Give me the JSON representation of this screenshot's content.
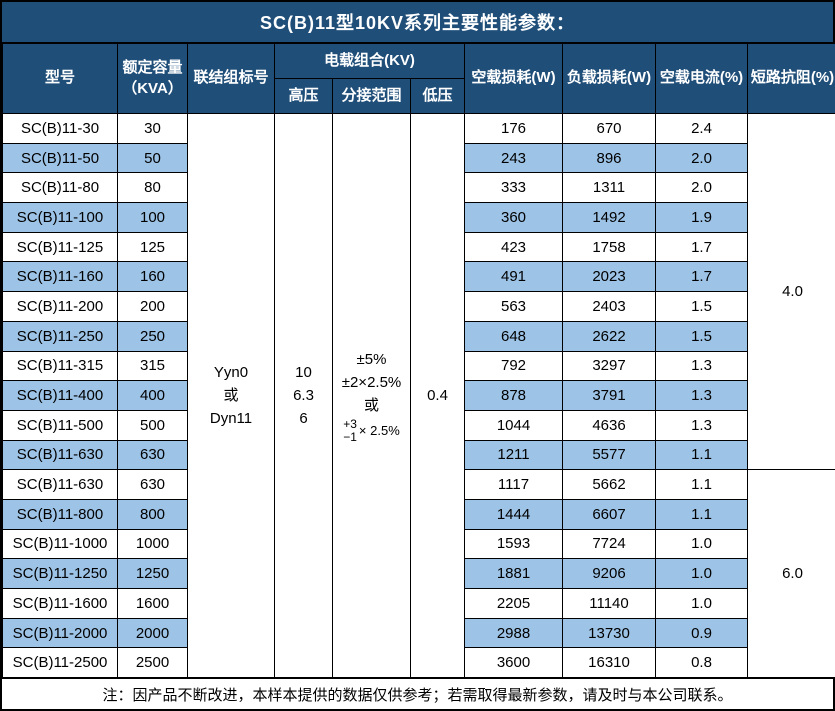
{
  "title": "SC(B)11型10KV系列主要性能参数：",
  "header": {
    "model": "型号",
    "capacity_line1": "额定容量",
    "capacity_line2": "（KVA）",
    "connection": "联结组标号",
    "voltage_combo": "电载组合(KV)",
    "high_voltage": "高压",
    "tap_range": "分接范围",
    "low_voltage": "低压",
    "no_load_loss": "空载损耗(W)",
    "load_loss": "负载损耗(W)",
    "no_load_current": "空载电流(%)",
    "impedance": "短路抗阻(%)"
  },
  "merged": {
    "connection_lines": [
      "Yyn0",
      "或",
      "Dyn11"
    ],
    "high_voltage_lines": [
      "10",
      "6.3",
      "6"
    ],
    "tap_range": {
      "line1": "±5%",
      "line2": "±2×2.5%",
      "line3": "或",
      "stack_top": "+3",
      "stack_bottom": "−1",
      "stack_suffix": "× 2.5%"
    },
    "low_voltage": "0.4"
  },
  "impedance_groups": [
    {
      "value": "4.0",
      "row_span": 12
    },
    {
      "value": "6.0",
      "row_span": 7
    }
  ],
  "rows": [
    {
      "model": "SC(B)11-30",
      "capacity": "30",
      "no_load_loss": "176",
      "load_loss": "670",
      "no_load_current": "2.4"
    },
    {
      "model": "SC(B)11-50",
      "capacity": "50",
      "no_load_loss": "243",
      "load_loss": "896",
      "no_load_current": "2.0"
    },
    {
      "model": "SC(B)11-80",
      "capacity": "80",
      "no_load_loss": "333",
      "load_loss": "1311",
      "no_load_current": "2.0"
    },
    {
      "model": "SC(B)11-100",
      "capacity": "100",
      "no_load_loss": "360",
      "load_loss": "1492",
      "no_load_current": "1.9"
    },
    {
      "model": "SC(B)11-125",
      "capacity": "125",
      "no_load_loss": "423",
      "load_loss": "1758",
      "no_load_current": "1.7"
    },
    {
      "model": "SC(B)11-160",
      "capacity": "160",
      "no_load_loss": "491",
      "load_loss": "2023",
      "no_load_current": "1.7"
    },
    {
      "model": "SC(B)11-200",
      "capacity": "200",
      "no_load_loss": "563",
      "load_loss": "2403",
      "no_load_current": "1.5"
    },
    {
      "model": "SC(B)11-250",
      "capacity": "250",
      "no_load_loss": "648",
      "load_loss": "2622",
      "no_load_current": "1.5"
    },
    {
      "model": "SC(B)11-315",
      "capacity": "315",
      "no_load_loss": "792",
      "load_loss": "3297",
      "no_load_current": "1.3"
    },
    {
      "model": "SC(B)11-400",
      "capacity": "400",
      "no_load_loss": "878",
      "load_loss": "3791",
      "no_load_current": "1.3"
    },
    {
      "model": "SC(B)11-500",
      "capacity": "500",
      "no_load_loss": "1044",
      "load_loss": "4636",
      "no_load_current": "1.3"
    },
    {
      "model": "SC(B)11-630",
      "capacity": "630",
      "no_load_loss": "1211",
      "load_loss": "5577",
      "no_load_current": "1.1"
    },
    {
      "model": "SC(B)11-630",
      "capacity": "630",
      "no_load_loss": "1117",
      "load_loss": "5662",
      "no_load_current": "1.1"
    },
    {
      "model": "SC(B)11-800",
      "capacity": "800",
      "no_load_loss": "1444",
      "load_loss": "6607",
      "no_load_current": "1.1"
    },
    {
      "model": "SC(B)11-1000",
      "capacity": "1000",
      "no_load_loss": "1593",
      "load_loss": "7724",
      "no_load_current": "1.0"
    },
    {
      "model": "SC(B)11-1250",
      "capacity": "1250",
      "no_load_loss": "1881",
      "load_loss": "9206",
      "no_load_current": "1.0"
    },
    {
      "model": "SC(B)11-1600",
      "capacity": "1600",
      "no_load_loss": "2205",
      "load_loss": "11140",
      "no_load_current": "1.0"
    },
    {
      "model": "SC(B)11-2000",
      "capacity": "2000",
      "no_load_loss": "2988",
      "load_loss": "13730",
      "no_load_current": "0.9"
    },
    {
      "model": "SC(B)11-2500",
      "capacity": "2500",
      "no_load_loss": "3600",
      "load_loss": "16310",
      "no_load_current": "0.8"
    }
  ],
  "note": "注：因产品不断改进，本样本提供的数据仅供参考；若需取得最新参数，请及时与本公司联系。",
  "colors": {
    "header_bg": "#1F4E79",
    "stripe_bg": "#9DC3E6",
    "border": "#000000",
    "header_text": "#FFFFFF",
    "body_text": "#000000"
  }
}
